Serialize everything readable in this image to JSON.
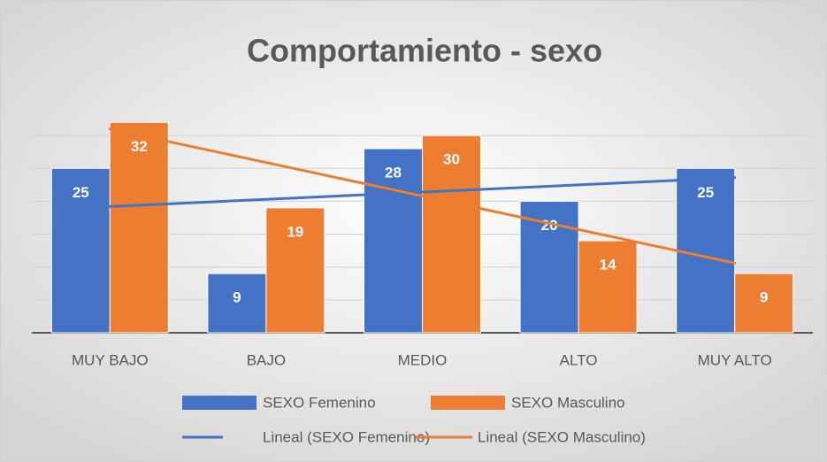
{
  "chart_data": {
    "type": "bar",
    "title": "Comportamiento - sexo",
    "categories": [
      "MUY BAJO",
      "BAJO",
      "MEDIO",
      "ALTO",
      "MUY ALTO"
    ],
    "series": [
      {
        "name": "SEXO Femenino",
        "color": "#4472c4",
        "values": [
          25,
          9,
          28,
          20,
          25
        ],
        "trendline": "Lineal (SEXO Femenino)"
      },
      {
        "name": "SEXO Masculino",
        "color": "#ed7d31",
        "values": [
          32,
          19,
          30,
          14,
          9
        ],
        "trendline": "Lineal (SEXO Masculino)"
      }
    ],
    "ylim": [
      0,
      35
    ],
    "yticks": [
      0,
      5,
      10,
      15,
      20,
      25,
      30
    ],
    "grid": true,
    "legend": "bottom"
  }
}
